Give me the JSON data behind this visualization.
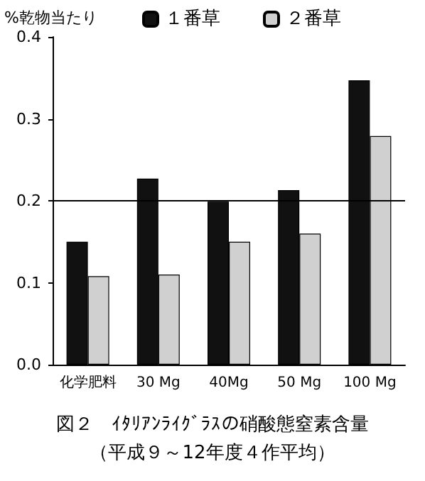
{
  "chart_data": {
    "type": "bar",
    "title": "図２　ｲﾀﾘｱﾝﾗｲｸﾞﾗｽの硝酸態窒素含量",
    "subtitle": "（平成９～12年度４作平均）",
    "ylabel": "%乾物当たり",
    "categories": [
      "化学肥料",
      "30 Mg",
      "40Mg",
      "50 Mg",
      "100 Mg"
    ],
    "series": [
      {
        "name": "１番草",
        "color": "#111111",
        "values": [
          0.15,
          0.227,
          0.199,
          0.213,
          0.347
        ]
      },
      {
        "name": "２番草",
        "color": "#d0d0d0",
        "values": [
          0.108,
          0.11,
          0.15,
          0.16,
          0.279
        ]
      }
    ],
    "ylim": [
      0,
      0.4
    ],
    "yticks": [
      {
        "value": 0,
        "label": "0.0"
      },
      {
        "value": 0.1,
        "label": "0.1"
      },
      {
        "value": 0.2,
        "label": "0.2"
      },
      {
        "value": 0.3,
        "label": "0.3"
      },
      {
        "value": 0.4,
        "label": "0.4"
      }
    ],
    "ref_lines": [
      {
        "axis": "y",
        "value": 0.2,
        "color": "#000000"
      }
    ],
    "grid": false,
    "legend": "top"
  }
}
